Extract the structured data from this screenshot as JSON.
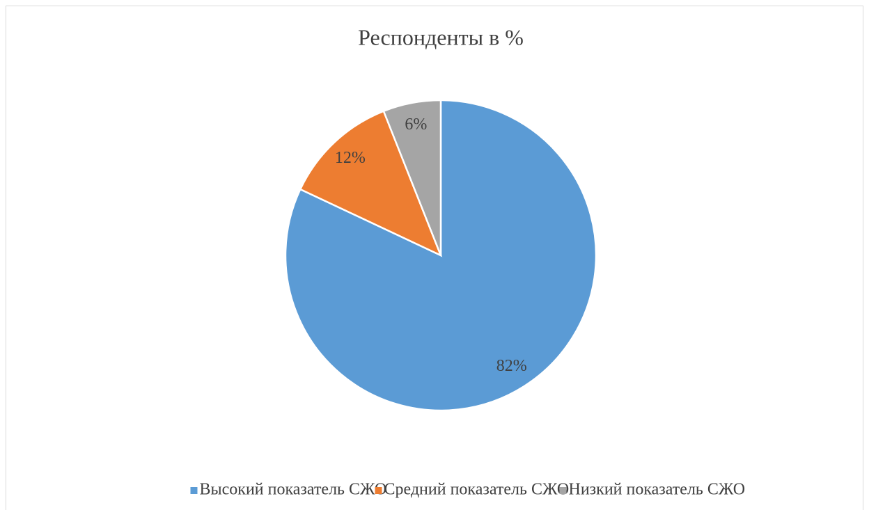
{
  "chart_data": {
    "type": "pie",
    "title": "Респонденты в %",
    "categories": [
      "Высокий показатель СЖО",
      "Средний показатель СЖО",
      "Низкий показатель СЖО"
    ],
    "values": [
      82,
      12,
      6
    ],
    "value_labels": [
      "82%",
      "12%",
      "6%"
    ],
    "colors": [
      "#5b9bd5",
      "#ed7d31",
      "#a5a5a5"
    ],
    "legend": "bottom"
  }
}
